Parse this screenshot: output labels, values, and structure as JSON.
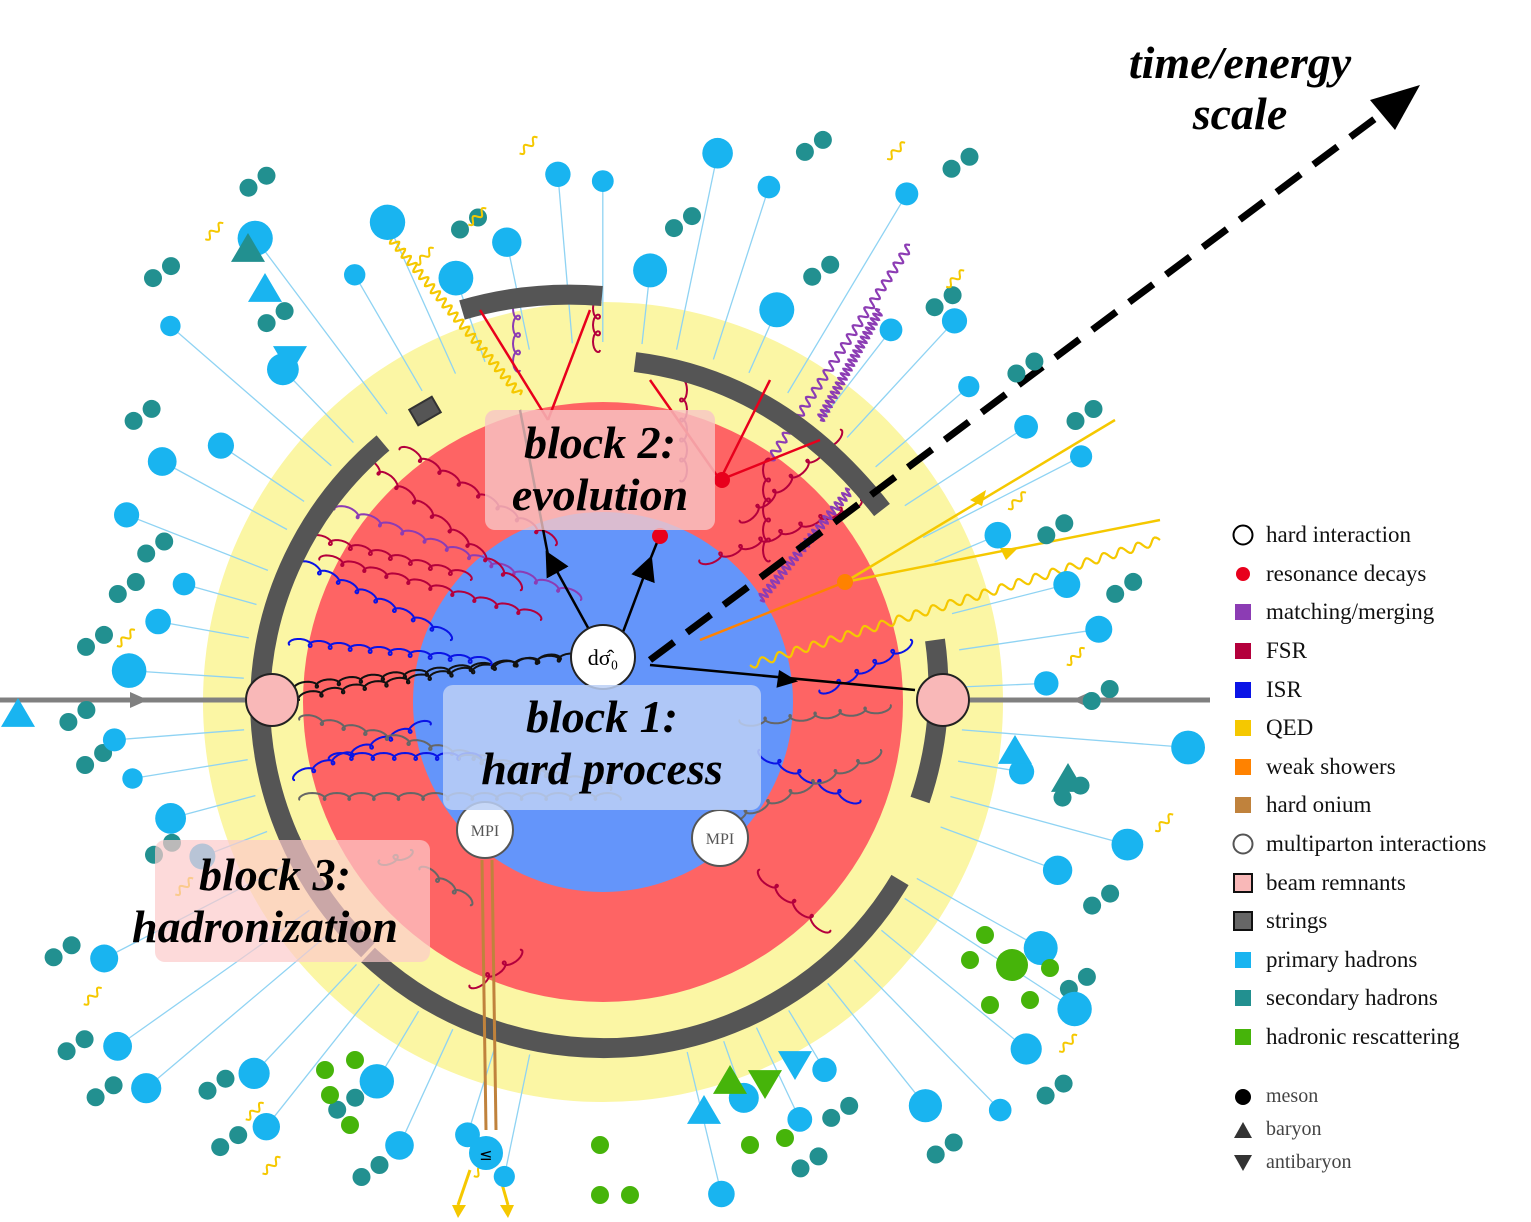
{
  "axis_label": [
    "time/energy",
    "scale"
  ],
  "blocks": {
    "block1": [
      "block 1:",
      "hard process"
    ],
    "block2": [
      "block 2:",
      "evolution"
    ],
    "block3": [
      "block 3:",
      "hadronization"
    ]
  },
  "nodes": {
    "hard": "dσ̂₀",
    "mpi_left": "MPI",
    "mpi_right": "MPI",
    "onium": "≤"
  },
  "legend": [
    {
      "label": "hard interaction",
      "shape": "open-circle",
      "color": "#000000"
    },
    {
      "label": "resonance decays",
      "shape": "dot",
      "color": "#e8001c"
    },
    {
      "label": "matching/merging",
      "shape": "square",
      "color": "#8c3cb4"
    },
    {
      "label": "FSR",
      "shape": "square",
      "color": "#b4003c"
    },
    {
      "label": "ISR",
      "shape": "square",
      "color": "#0a14e6"
    },
    {
      "label": "QED",
      "shape": "square",
      "color": "#f5c800"
    },
    {
      "label": "weak showers",
      "shape": "square",
      "color": "#ff8200"
    },
    {
      "label": "hard onium",
      "shape": "square",
      "color": "#c0823c"
    },
    {
      "label": "multiparton interactions",
      "shape": "open-circle",
      "color": "#555555"
    },
    {
      "label": "beam remnants",
      "shape": "outlined-square",
      "color": "#f9b8b8"
    },
    {
      "label": "strings",
      "shape": "outlined-square",
      "color": "#666666"
    },
    {
      "label": "primary hadrons",
      "shape": "square",
      "color": "#19b4f0"
    },
    {
      "label": "secondary hadrons",
      "shape": "square",
      "color": "#229090"
    },
    {
      "label": "hadronic rescattering",
      "shape": "square",
      "color": "#46b40a"
    }
  ],
  "shape_legend": [
    {
      "label": "meson",
      "shape": "circle"
    },
    {
      "label": "baryon",
      "shape": "triangle-up"
    },
    {
      "label": "antibaryon",
      "shape": "triangle-down"
    }
  ],
  "colors": {
    "yellow_zone": "#fbf6a4",
    "red_zone": "#fe6464",
    "blue_zone": "#6495fa",
    "string": "#666666",
    "primary": "#19b4f0",
    "secondary": "#229090",
    "rescatter": "#46b40a",
    "fsr": "#b4003c",
    "isr": "#0a14e6",
    "qed": "#f5c800",
    "weak": "#ff8200",
    "merging": "#8c3cb4",
    "resonance": "#e8001c"
  }
}
